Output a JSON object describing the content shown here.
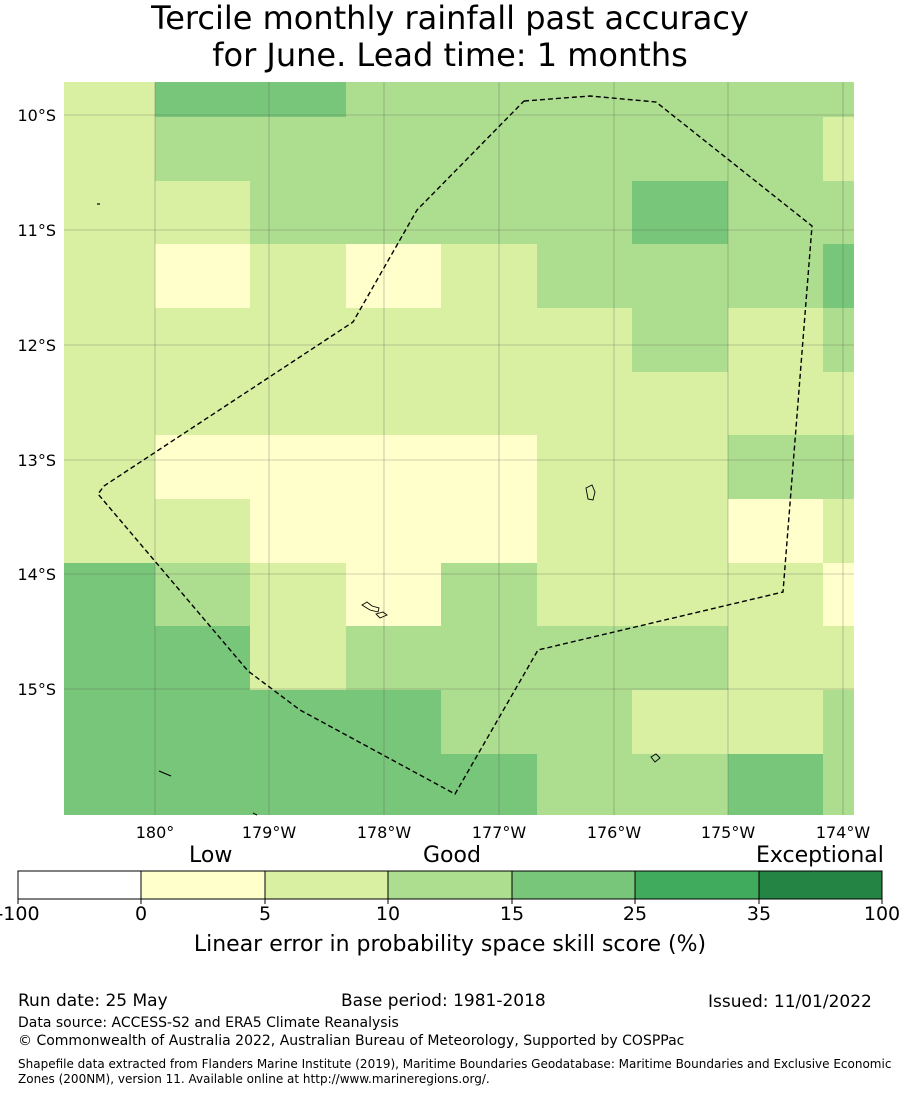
{
  "title": {
    "line1": "Tercile monthly rainfall past accuracy",
    "line2": "for June. Lead time: 1 months"
  },
  "map": {
    "lat_labels": [
      "10°S",
      "11°S",
      "12°S",
      "13°S",
      "14°S",
      "15°S"
    ],
    "lon_labels": [
      "180°",
      "179°W",
      "178°W",
      "177°W",
      "176°W",
      "175°W",
      "174°W"
    ],
    "grid": [
      [
        2,
        4,
        4,
        3,
        3,
        3,
        3,
        3,
        3
      ],
      [
        2,
        3,
        3,
        3,
        3,
        3,
        3,
        3,
        2
      ],
      [
        2,
        2,
        3,
        3,
        3,
        3,
        4,
        3,
        3
      ],
      [
        2,
        1,
        2,
        1,
        2,
        3,
        3,
        3,
        4
      ],
      [
        2,
        2,
        2,
        2,
        2,
        2,
        3,
        2,
        3
      ],
      [
        2,
        2,
        2,
        2,
        2,
        2,
        2,
        2,
        2
      ],
      [
        2,
        1,
        1,
        1,
        1,
        2,
        2,
        3,
        3
      ],
      [
        2,
        2,
        1,
        1,
        1,
        2,
        2,
        1,
        2
      ],
      [
        4,
        3,
        2,
        1,
        3,
        2,
        2,
        2,
        1
      ],
      [
        4,
        4,
        2,
        3,
        3,
        3,
        3,
        2,
        2
      ],
      [
        4,
        4,
        4,
        4,
        3,
        3,
        2,
        2,
        3
      ],
      [
        4,
        4,
        4,
        4,
        4,
        3,
        3,
        4,
        3
      ]
    ],
    "zone_color": "#000000"
  },
  "colorbar": {
    "words": {
      "low": "Low",
      "good": "Good",
      "exceptional": "Exceptional"
    },
    "ticks": [
      "-100",
      "0",
      "5",
      "10",
      "15",
      "25",
      "35",
      "100"
    ],
    "colors": [
      "#ffffff",
      "#ffffcc",
      "#d9f0a3",
      "#addd8e",
      "#78c679",
      "#41ab5d",
      "#238443"
    ],
    "title": "Linear error in probability space skill score (%)"
  },
  "footer": {
    "run_date": "Run date: 25 May",
    "base_period": "Base period: 1981-2018",
    "issued": "Issued: 11/01/2022",
    "data_source": "Data source: ACCESS-S2 and ERA5 Climate Reanalysis",
    "copyright": "© Commonwealth of Australia 2022, Australian Bureau of Meteorology, Supported by COSPPac",
    "shapefile": "Shapefile data extracted from Flanders Marine Institute (2019), Maritime Boundaries Geodatabase: Maritime Boundaries and Exclusive Economic Zones (200NM), version 11. Available online at http://www.marineregions.org/."
  }
}
